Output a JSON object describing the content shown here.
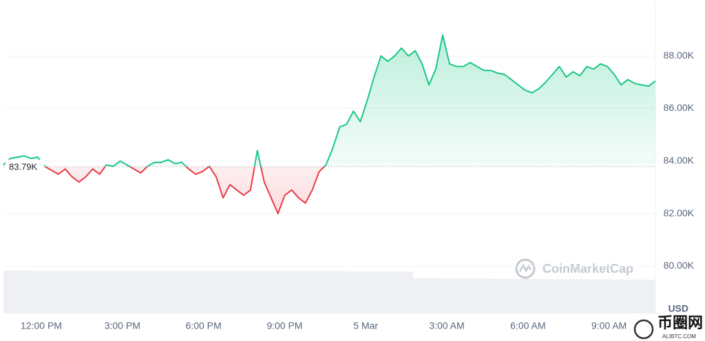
{
  "chart_data": {
    "type": "line",
    "color_up": "#16c784",
    "color_down": "#ea3943",
    "baseline": {
      "value": 83790,
      "label": "83.79K"
    },
    "ylim": [
      78200,
      90000
    ],
    "yticks": [
      {
        "value": 80000,
        "label": "80.00K"
      },
      {
        "value": 82000,
        "label": "82.00K"
      },
      {
        "value": 84000,
        "label": "84.00K"
      },
      {
        "value": 86000,
        "label": "86.00K"
      },
      {
        "value": 88000,
        "label": "88.00K"
      }
    ],
    "grid": true,
    "x_labels": [
      "12:00 PM",
      "3:00 PM",
      "6:00 PM",
      "9:00 PM",
      "5 Mar",
      "3:00 AM",
      "6:00 AM",
      "9:00 AM"
    ],
    "unit": "USD",
    "watermark": "CoinMarketCap",
    "logo": {
      "name": "币圈网",
      "site": "ALIBTC.COM"
    },
    "values": [
      83850,
      84100,
      84150,
      84200,
      84100,
      84150,
      83800,
      83650,
      83500,
      83700,
      83400,
      83200,
      83400,
      83700,
      83500,
      83850,
      83800,
      84000,
      83850,
      83700,
      83550,
      83800,
      83950,
      83950,
      84050,
      83900,
      83950,
      83700,
      83500,
      83600,
      83800,
      83400,
      82600,
      83100,
      82900,
      82700,
      82900,
      84400,
      83200,
      82600,
      82000,
      82700,
      82900,
      82600,
      82400,
      82900,
      83600,
      83850,
      84500,
      85300,
      85400,
      85900,
      85500,
      86300,
      87200,
      88000,
      87800,
      88000,
      88300,
      88000,
      88200,
      87700,
      86900,
      87500,
      88800,
      87700,
      87600,
      87600,
      87750,
      87600,
      87450,
      87450,
      87350,
      87300,
      87100,
      86900,
      86700,
      86600,
      86750,
      87000,
      87300,
      87600,
      87200,
      87400,
      87250,
      87600,
      87500,
      87700,
      87600,
      87300,
      86900,
      87100,
      86950,
      86900,
      86850,
      87050
    ]
  }
}
